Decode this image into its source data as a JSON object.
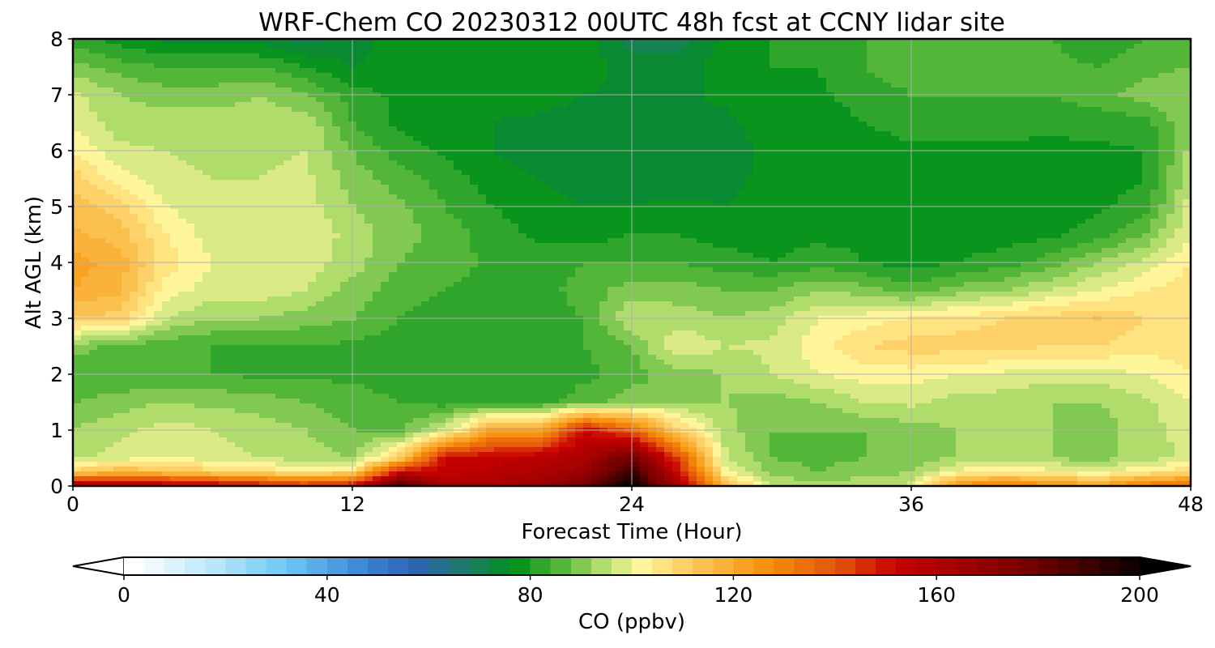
{
  "chart_data": {
    "type": "heatmap",
    "title": "WRF-Chem CO  20230312 00UTC 48h fcst at CCNY lidar site",
    "xlabel": "Forecast Time (Hour)",
    "ylabel": "Alt AGL (km)",
    "xlim": [
      0,
      48
    ],
    "ylim": [
      0,
      8
    ],
    "xticks": [
      "0",
      "12",
      "24",
      "36",
      "48"
    ],
    "yticks": [
      "0",
      "1",
      "2",
      "3",
      "4",
      "5",
      "6",
      "7",
      "8"
    ],
    "grid": true,
    "colorbar": {
      "label": "CO  (ppbv)",
      "range": [
        0,
        200
      ],
      "ticks": [
        "0",
        "40",
        "80",
        "120",
        "160",
        "200"
      ],
      "extend": "both",
      "colors": [
        {
          "value": 0,
          "color": "#ffffff"
        },
        {
          "value": 16,
          "color": "#b9e6f8"
        },
        {
          "value": 30,
          "color": "#6cc8f5"
        },
        {
          "value": 45,
          "color": "#3d86d8"
        },
        {
          "value": 55,
          "color": "#2d62b4"
        },
        {
          "value": 65,
          "color": "#1f7a6a"
        },
        {
          "value": 75,
          "color": "#00901a"
        },
        {
          "value": 85,
          "color": "#5dba3c"
        },
        {
          "value": 94,
          "color": "#c8e67a"
        },
        {
          "value": 100,
          "color": "#fff59a"
        },
        {
          "value": 110,
          "color": "#fcc85a"
        },
        {
          "value": 125,
          "color": "#f7900a"
        },
        {
          "value": 140,
          "color": "#e04a0a"
        },
        {
          "value": 150,
          "color": "#c80000"
        },
        {
          "value": 175,
          "color": "#7a0000"
        },
        {
          "value": 200,
          "color": "#000000"
        }
      ]
    },
    "times_hours": [
      0,
      2,
      4,
      6,
      8,
      10,
      12,
      14,
      16,
      18,
      20,
      22,
      24,
      26,
      28,
      30,
      32,
      34,
      36,
      38,
      40,
      42,
      44,
      46,
      48
    ],
    "altitudes_km": [
      0,
      0.25,
      0.5,
      1,
      1.5,
      2,
      2.5,
      3,
      3.5,
      4,
      4.5,
      5,
      5.5,
      6,
      6.5,
      7,
      7.5,
      8
    ],
    "values_ppbv": [
      [
        165,
        158,
        158,
        155,
        150,
        145,
        150,
        185,
        160,
        160,
        165,
        175,
        200,
        160,
        115,
        95,
        92,
        93,
        95,
        125,
        130,
        125,
        120,
        130,
        135
      ],
      [
        108,
        115,
        112,
        108,
        105,
        103,
        105,
        150,
        152,
        155,
        158,
        165,
        190,
        150,
        100,
        88,
        86,
        88,
        90,
        100,
        102,
        100,
        98,
        102,
        105
      ],
      [
        93,
        96,
        98,
        96,
        94,
        92,
        90,
        108,
        150,
        152,
        155,
        160,
        178,
        140,
        95,
        86,
        85,
        86,
        88,
        90,
        92,
        90,
        88,
        92,
        95
      ],
      [
        90,
        93,
        96,
        94,
        92,
        90,
        86,
        85,
        95,
        120,
        118,
        150,
        135,
        108,
        92,
        86,
        86,
        86,
        88,
        90,
        92,
        90,
        88,
        92,
        96
      ],
      [
        86,
        88,
        90,
        89,
        88,
        86,
        84,
        82,
        80,
        80,
        80,
        84,
        88,
        90,
        90,
        88,
        90,
        94,
        95,
        92,
        92,
        90,
        90,
        93,
        98
      ],
      [
        82,
        82,
        82,
        82,
        81,
        81,
        81,
        80,
        80,
        80,
        80,
        81,
        84,
        88,
        90,
        94,
        98,
        100,
        100,
        98,
        97,
        96,
        96,
        98,
        102
      ],
      [
        88,
        85,
        83,
        82,
        82,
        82,
        81,
        80,
        80,
        80,
        80,
        82,
        86,
        98,
        94,
        95,
        100,
        106,
        108,
        108,
        108,
        106,
        106,
        104,
        104
      ],
      [
        110,
        108,
        94,
        90,
        90,
        88,
        86,
        82,
        80,
        80,
        80,
        82,
        94,
        92,
        90,
        92,
        98,
        100,
        102,
        104,
        106,
        108,
        110,
        106,
        104
      ],
      [
        118,
        115,
        100,
        96,
        96,
        94,
        88,
        84,
        82,
        80,
        80,
        84,
        88,
        88,
        86,
        86,
        90,
        88,
        84,
        88,
        90,
        94,
        98,
        102,
        105
      ],
      [
        120,
        116,
        104,
        98,
        96,
        96,
        92,
        86,
        84,
        81,
        80,
        82,
        82,
        82,
        80,
        78,
        80,
        78,
        76,
        78,
        80,
        84,
        90,
        95,
        102
      ],
      [
        115,
        112,
        102,
        96,
        98,
        98,
        92,
        88,
        84,
        80,
        77,
        76,
        78,
        78,
        76,
        76,
        77,
        77,
        76,
        76,
        76,
        77,
        80,
        86,
        98
      ],
      [
        112,
        108,
        98,
        95,
        96,
        96,
        90,
        87,
        82,
        78,
        76,
        74,
        74,
        75,
        74,
        75,
        75,
        76,
        76,
        76,
        76,
        76,
        77,
        80,
        96
      ],
      [
        108,
        100,
        95,
        94,
        94,
        95,
        88,
        84,
        80,
        76,
        74,
        72,
        72,
        72,
        73,
        75,
        75,
        76,
        76,
        76,
        76,
        76,
        76,
        78,
        93
      ],
      [
        102,
        95,
        94,
        93,
        93,
        94,
        86,
        80,
        77,
        74,
        72,
        71,
        70,
        70,
        72,
        75,
        75,
        76,
        77,
        77,
        77,
        76,
        77,
        78,
        91
      ],
      [
        97,
        92,
        92,
        92,
        92,
        93,
        82,
        77,
        75,
        74,
        73,
        72,
        72,
        72,
        73,
        76,
        76,
        78,
        80,
        80,
        80,
        80,
        80,
        80,
        90
      ],
      [
        95,
        90,
        88,
        88,
        90,
        86,
        80,
        77,
        76,
        76,
        76,
        74,
        73,
        73,
        75,
        77,
        77,
        80,
        82,
        82,
        82,
        82,
        84,
        88,
        90
      ],
      [
        88,
        84,
        82,
        82,
        82,
        78,
        74,
        76,
        77,
        77,
        77,
        76,
        72,
        72,
        76,
        78,
        78,
        82,
        84,
        84,
        84,
        83,
        82,
        84,
        86
      ],
      [
        80,
        76,
        73,
        72,
        72,
        68,
        72,
        76,
        78,
        78,
        78,
        76,
        68,
        68,
        75,
        78,
        79,
        82,
        83,
        84,
        84,
        82,
        80,
        82,
        84
      ]
    ]
  }
}
